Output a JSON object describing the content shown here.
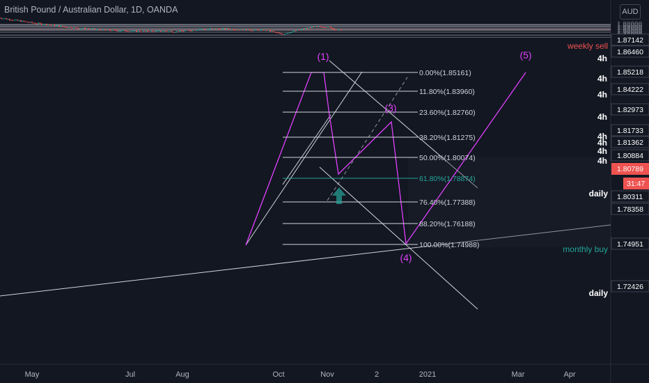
{
  "header": {
    "title": "British Pound / Australian Dollar, 1D, OANDA",
    "currency": "AUD"
  },
  "colors": {
    "background": "#131722",
    "up": "#26a69a",
    "down": "#ef5350",
    "magenta": "#e040fb",
    "line": "#d1d4dc",
    "axis_text": "#b2b5be",
    "price_tag": "#ef5350"
  },
  "time_labels": [
    "May",
    "Jul",
    "Aug",
    "Oct",
    "Nov",
    "2",
    "2021",
    "Mar",
    "Apr"
  ],
  "price_axis": {
    "grey_ticks": [
      "1.88000",
      "1.86000",
      "1.84000",
      "1.82000",
      "1.80000",
      "1.78000",
      "1.76000",
      "1.74000",
      "1.72000",
      "1.70000",
      "1.68000"
    ],
    "tags": [
      "1.87142",
      "1.86460",
      "1.85218",
      "1.84222",
      "1.82973",
      "1.81733",
      "1.81362",
      "1.80884",
      "1.80311",
      "1.78358",
      "1.74951",
      "1.72426"
    ],
    "last_price": "1.80789",
    "countdown": "31:47"
  },
  "level_labels": {
    "weekly_sell": "weekly sell",
    "monthly_buy": "monthly buy",
    "tf_4h": "4h",
    "daily": "daily"
  },
  "wave_labels": [
    "(1)",
    "(3)",
    "(4)",
    "(5)"
  ],
  "fibonacci": [
    {
      "ratio": "0.00%",
      "price": "(1.85161)"
    },
    {
      "ratio": "11.80%",
      "price": "(1.83960)"
    },
    {
      "ratio": "23.60%",
      "price": "(1.82760)"
    },
    {
      "ratio": "38.20%",
      "price": "(1.81275)"
    },
    {
      "ratio": "50.00%",
      "price": "(1.80074)"
    },
    {
      "ratio": "61.80%",
      "price": "(1.78874)"
    },
    {
      "ratio": "76.40%",
      "price": "(1.77388)"
    },
    {
      "ratio": "88.20%",
      "price": "(1.76188)"
    },
    {
      "ratio": "100.00%",
      "price": "(1.74988)"
    }
  ],
  "chart_data": {
    "type": "candlestick",
    "symbol": "GBPAUD",
    "price_range": [
      1.68,
      1.89
    ],
    "candles_close_path": [
      {
        "date": "2020-04-10",
        "close": 1.95
      },
      {
        "date": "2020-05-01",
        "close": 1.89
      },
      {
        "date": "2020-05-15",
        "close": 1.86
      },
      {
        "date": "2020-05-29",
        "close": 1.83
      },
      {
        "date": "2020-06-12",
        "close": 1.81
      },
      {
        "date": "2020-06-26",
        "close": 1.8
      },
      {
        "date": "2020-07-08",
        "close": 1.79
      },
      {
        "date": "2020-07-22",
        "close": 1.795
      },
      {
        "date": "2020-07-30",
        "close": 1.789
      },
      {
        "date": "2020-08-14",
        "close": 1.818
      },
      {
        "date": "2020-08-28",
        "close": 1.82
      },
      {
        "date": "2020-09-10",
        "close": 1.81
      },
      {
        "date": "2020-09-24",
        "close": 1.805
      },
      {
        "date": "2020-10-03",
        "close": 1.76
      },
      {
        "date": "2020-10-12",
        "close": 1.8
      },
      {
        "date": "2020-10-22",
        "close": 1.84
      },
      {
        "date": "2020-10-28",
        "close": 1.848
      },
      {
        "date": "2020-11-02",
        "close": 1.838
      },
      {
        "date": "2020-11-07",
        "close": 1.805
      },
      {
        "date": "2020-11-10",
        "close": 1.808
      }
    ]
  }
}
